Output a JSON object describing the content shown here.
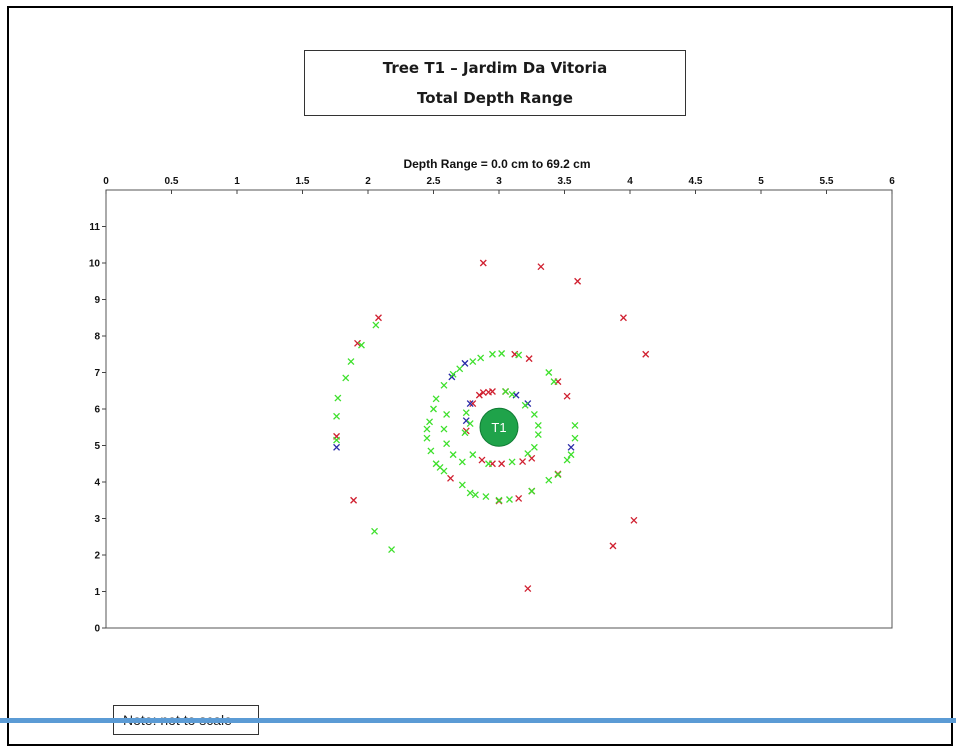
{
  "title": {
    "line1": "Tree T1 – Jardim Da Vitoria",
    "line2": "Total Depth Range"
  },
  "note": "Note:  not to scale",
  "chart_data": {
    "type": "scatter",
    "subtitle": "Depth Range = 0.0 cm to 69.2 cm",
    "xlim": [
      0,
      6
    ],
    "ylim": [
      0,
      12
    ],
    "x_axis_position": "top",
    "x_ticks": [
      "0",
      "0.5",
      "1",
      "1.5",
      "2",
      "2.5",
      "3",
      "3.5",
      "4",
      "4.5",
      "5",
      "5.5",
      "6"
    ],
    "y_ticks": [
      "0",
      "1",
      "2",
      "3",
      "4",
      "5",
      "6",
      "7",
      "8",
      "9",
      "10",
      "11"
    ],
    "grid": false,
    "marker": "x",
    "tree": {
      "label": "T1",
      "x": 3.0,
      "y": 5.5,
      "color": "#1fa34a"
    },
    "series": [
      {
        "color": "#d02030",
        "points": [
          [
            2.88,
            10.0
          ],
          [
            3.32,
            9.9
          ],
          [
            3.6,
            9.5
          ],
          [
            3.95,
            8.5
          ],
          [
            4.12,
            7.5
          ],
          [
            2.08,
            8.5
          ],
          [
            1.92,
            7.8
          ],
          [
            1.76,
            5.25
          ],
          [
            1.89,
            3.5
          ],
          [
            3.87,
            2.25
          ],
          [
            4.03,
            2.95
          ],
          [
            3.22,
            1.08
          ],
          [
            3.12,
            7.5
          ],
          [
            3.23,
            7.38
          ],
          [
            3.45,
            6.75
          ],
          [
            3.52,
            6.35
          ],
          [
            3.25,
            3.75
          ],
          [
            3.15,
            3.55
          ],
          [
            3.0,
            3.48
          ],
          [
            3.45,
            4.22
          ],
          [
            2.63,
            4.1
          ],
          [
            3.18,
            4.56
          ],
          [
            3.25,
            4.65
          ],
          [
            3.02,
            4.5
          ],
          [
            2.95,
            4.5
          ],
          [
            2.87,
            4.6
          ],
          [
            2.75,
            5.4
          ],
          [
            2.8,
            6.15
          ],
          [
            2.88,
            6.45
          ],
          [
            2.95,
            6.48
          ],
          [
            3.05,
            6.48
          ],
          [
            2.85,
            6.38
          ],
          [
            2.92,
            6.46
          ]
        ]
      },
      {
        "color": "#2a2aa8",
        "points": [
          [
            1.76,
            4.95
          ],
          [
            2.64,
            6.88
          ],
          [
            2.74,
            7.25
          ],
          [
            2.75,
            5.68
          ],
          [
            3.55,
            4.95
          ],
          [
            3.13,
            6.38
          ],
          [
            3.22,
            6.15
          ],
          [
            2.78,
            6.15
          ]
        ]
      },
      {
        "color": "#3ee02c",
        "points": [
          [
            2.06,
            8.3
          ],
          [
            1.95,
            7.75
          ],
          [
            1.87,
            7.3
          ],
          [
            1.83,
            6.85
          ],
          [
            1.77,
            6.3
          ],
          [
            1.76,
            5.8
          ],
          [
            1.76,
            5.15
          ],
          [
            2.05,
            2.65
          ],
          [
            2.18,
            2.15
          ],
          [
            2.45,
            5.2
          ],
          [
            2.45,
            5.45
          ],
          [
            2.47,
            5.65
          ],
          [
            2.5,
            6.0
          ],
          [
            2.52,
            6.28
          ],
          [
            2.58,
            6.65
          ],
          [
            2.65,
            6.95
          ],
          [
            2.7,
            7.1
          ],
          [
            2.8,
            7.3
          ],
          [
            2.86,
            7.4
          ],
          [
            2.95,
            7.5
          ],
          [
            3.02,
            7.52
          ],
          [
            3.15,
            7.48
          ],
          [
            3.38,
            7.0
          ],
          [
            3.42,
            6.75
          ],
          [
            2.48,
            4.85
          ],
          [
            2.52,
            4.5
          ],
          [
            2.55,
            4.4
          ],
          [
            2.58,
            4.3
          ],
          [
            2.72,
            3.92
          ],
          [
            2.78,
            3.7
          ],
          [
            2.82,
            3.65
          ],
          [
            2.9,
            3.6
          ],
          [
            3.0,
            3.5
          ],
          [
            3.08,
            3.52
          ],
          [
            3.25,
            3.75
          ],
          [
            3.38,
            4.05
          ],
          [
            3.45,
            4.2
          ],
          [
            3.52,
            4.6
          ],
          [
            3.55,
            4.75
          ],
          [
            3.58,
            5.2
          ],
          [
            3.58,
            5.55
          ],
          [
            2.6,
            5.85
          ],
          [
            2.58,
            5.45
          ],
          [
            2.6,
            5.05
          ],
          [
            2.65,
            4.75
          ],
          [
            2.72,
            4.55
          ],
          [
            2.8,
            4.75
          ],
          [
            2.92,
            4.5
          ],
          [
            3.1,
            4.55
          ],
          [
            3.22,
            4.78
          ],
          [
            3.27,
            4.95
          ],
          [
            3.3,
            5.3
          ],
          [
            3.3,
            5.55
          ],
          [
            3.27,
            5.85
          ],
          [
            3.2,
            6.1
          ],
          [
            3.1,
            6.4
          ],
          [
            3.05,
            6.48
          ],
          [
            2.75,
            5.9
          ],
          [
            2.78,
            5.6
          ],
          [
            2.74,
            5.35
          ]
        ]
      }
    ]
  }
}
